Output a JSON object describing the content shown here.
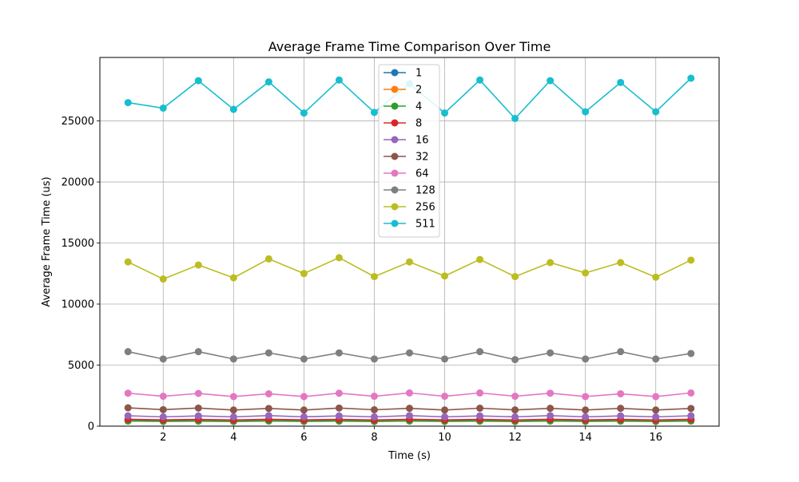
{
  "chart_data": {
    "type": "line",
    "title": "Average Frame Time Comparison Over Time",
    "xlabel": "Time (s)",
    "ylabel": "Average Frame Time (us)",
    "xlim": [
      0.2,
      17.8
    ],
    "ylim": [
      0,
      30200
    ],
    "x_ticks": [
      2,
      4,
      6,
      8,
      10,
      12,
      14,
      16
    ],
    "y_ticks": [
      0,
      5000,
      10000,
      15000,
      20000,
      25000
    ],
    "grid": true,
    "legend_position": "upper center",
    "x": [
      1,
      2,
      3,
      4,
      5,
      6,
      7,
      8,
      9,
      10,
      11,
      12,
      13,
      14,
      15,
      16,
      17
    ],
    "series": [
      {
        "name": "1",
        "color": "#1f77b4",
        "values": [
          480,
          430,
          470,
          440,
          480,
          430,
          470,
          440,
          480,
          430,
          470,
          440,
          480,
          430,
          470,
          440,
          480
        ]
      },
      {
        "name": "2",
        "color": "#ff7f0e",
        "values": [
          440,
          400,
          430,
          400,
          440,
          400,
          430,
          400,
          440,
          400,
          430,
          400,
          440,
          400,
          430,
          400,
          440
        ]
      },
      {
        "name": "4",
        "color": "#2ca02c",
        "values": [
          420,
          390,
          410,
          380,
          420,
          390,
          410,
          380,
          420,
          390,
          410,
          380,
          420,
          390,
          410,
          380,
          420
        ]
      },
      {
        "name": "8",
        "color": "#d62728",
        "values": [
          560,
          510,
          550,
          500,
          560,
          510,
          550,
          500,
          560,
          510,
          550,
          500,
          560,
          510,
          550,
          500,
          560
        ]
      },
      {
        "name": "16",
        "color": "#9467bd",
        "values": [
          850,
          760,
          840,
          760,
          860,
          760,
          840,
          760,
          860,
          760,
          840,
          760,
          860,
          760,
          840,
          760,
          850
        ]
      },
      {
        "name": "32",
        "color": "#8c564b",
        "values": [
          1500,
          1350,
          1480,
          1320,
          1450,
          1320,
          1480,
          1340,
          1460,
          1320,
          1470,
          1330,
          1460,
          1320,
          1460,
          1320,
          1450
        ]
      },
      {
        "name": "64",
        "color": "#e377c2",
        "values": [
          2700,
          2450,
          2680,
          2420,
          2650,
          2420,
          2700,
          2450,
          2720,
          2450,
          2720,
          2450,
          2700,
          2420,
          2650,
          2420,
          2720
        ]
      },
      {
        "name": "128",
        "color": "#7f7f7f",
        "values": [
          6100,
          5500,
          6100,
          5500,
          6000,
          5500,
          6000,
          5500,
          6000,
          5500,
          6100,
          5450,
          6000,
          5500,
          6100,
          5500,
          5950
        ]
      },
      {
        "name": "256",
        "color": "#bcbd22",
        "values": [
          13450,
          12050,
          13200,
          12150,
          13700,
          12500,
          13800,
          12250,
          13450,
          12300,
          13650,
          12250,
          13400,
          12550,
          13400,
          12200,
          13600
        ]
      },
      {
        "name": "511",
        "color": "#17becf",
        "values": [
          26500,
          26050,
          28300,
          25950,
          28200,
          25650,
          28350,
          25700,
          28050,
          25650,
          28350,
          25200,
          28300,
          25750,
          28150,
          25750,
          28500
        ]
      }
    ]
  }
}
